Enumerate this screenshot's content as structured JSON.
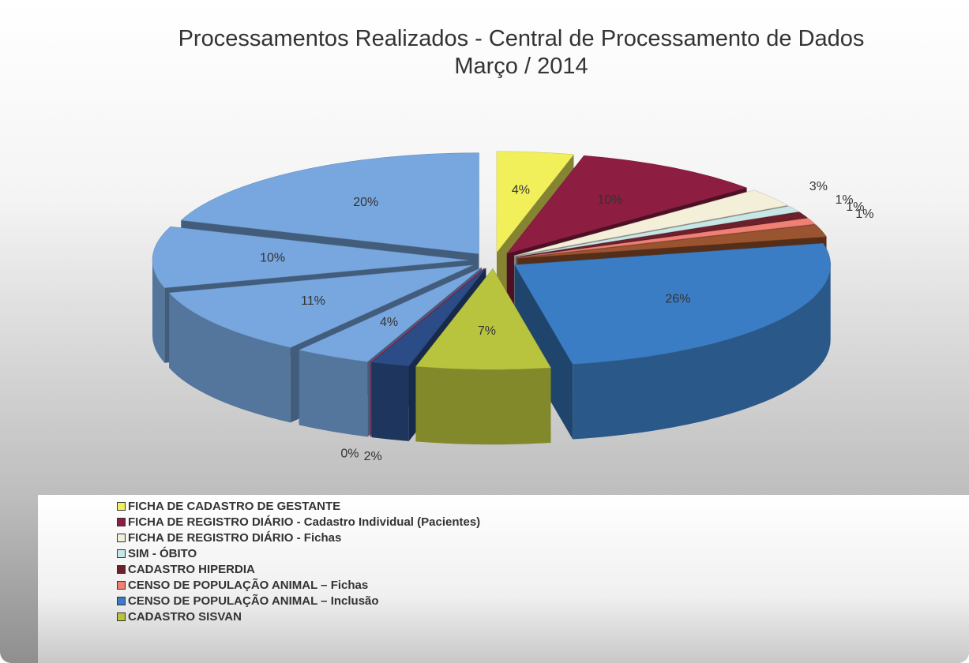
{
  "chart_data": {
    "type": "pie",
    "title": "Processamentos Realizados - Central de Processamento de Dados",
    "subtitle": "Março / 2014",
    "categories": [
      "FICHA DE CADASTRO DE GESTANTE",
      "FICHA DE REGISTRO DIÁRIO - Cadastro Individual (Pacientes)",
      "FICHA DE REGISTRO DIÁRIO - Fichas",
      "SIM - ÓBITO",
      "CADASTRO HIPERDIA",
      "CENSO DE POPULAÇÃO ANIMAL – Fichas",
      null,
      "CENSO DE POPULAÇÃO ANIMAL – Inclusão",
      "CADASTRO SISVAN",
      null,
      null,
      null,
      null,
      null,
      null
    ],
    "values": [
      4,
      10,
      3,
      1,
      1,
      1,
      2,
      26,
      7,
      2,
      0,
      4,
      11,
      10,
      20
    ],
    "value_labels": [
      "4%",
      "10%",
      "3%",
      "1%",
      "1%",
      "1%",
      null,
      "26%",
      "7%",
      "2%",
      "0%",
      "4%",
      "11%",
      "10%",
      "20%"
    ],
    "colors": [
      "#f2f05a",
      "#8e1d42",
      "#f3efd9",
      "#c9e6e6",
      "#6e1f2c",
      "#f07f74",
      "#9b5430",
      "#3b7dc4",
      "#b9c43e",
      "#2b4c86",
      "#e0457f",
      "#78a7df",
      "#78a7df",
      "#78a7df",
      "#78a7df"
    ]
  }
}
